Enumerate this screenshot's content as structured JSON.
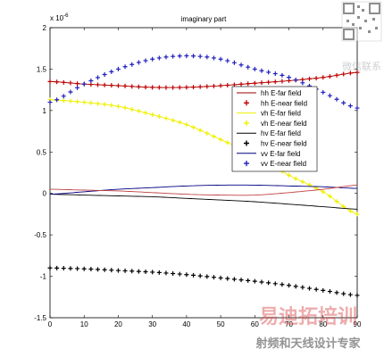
{
  "chart_data": {
    "type": "line",
    "title": "imaginary part",
    "xlabel": "",
    "ylabel": "",
    "exponent_label": "x 10",
    "exponent_power": "-6",
    "xlim": [
      0,
      90
    ],
    "ylim": [
      -1.5,
      2
    ],
    "x_ticks": [
      "0",
      "10",
      "20",
      "30",
      "40",
      "50",
      "60",
      "70",
      "80",
      "90"
    ],
    "y_ticks": [
      "-1.5",
      "-1",
      "-0.5",
      "0",
      "0.5",
      "1",
      "1.5",
      "2"
    ],
    "grid": false,
    "legend_position": "upper-right",
    "legend": [
      "hh E-far field",
      "hh E-near field",
      "vh E-far field",
      "vh E-near field",
      "hv E-far field",
      "hv E-near field",
      "vv E-far field",
      "vv E-near field"
    ],
    "series": [
      {
        "name": "hh E-far field",
        "color": "#a00000",
        "style": "line",
        "x": [
          0,
          10,
          20,
          30,
          40,
          50,
          60,
          70,
          80,
          90
        ],
        "y": [
          1.35,
          1.32,
          1.3,
          1.28,
          1.28,
          1.3,
          1.33,
          1.36,
          1.4,
          1.46
        ]
      },
      {
        "name": "hh E-near field",
        "color": "#c00000",
        "style": "plus",
        "x": [
          0,
          10,
          20,
          30,
          40,
          50,
          60,
          70,
          80,
          90
        ],
        "y": [
          1.35,
          1.32,
          1.3,
          1.28,
          1.28,
          1.3,
          1.33,
          1.36,
          1.4,
          1.46
        ]
      },
      {
        "name": "vh E-far field",
        "color": "#f0f000",
        "style": "line",
        "x": [
          0,
          10,
          20,
          30,
          40,
          50,
          60,
          70,
          80,
          90
        ],
        "y": [
          1.13,
          1.1,
          1.05,
          0.95,
          0.83,
          0.65,
          0.46,
          0.22,
          0.02,
          -0.25
        ]
      },
      {
        "name": "vh E-near field",
        "color": "#f0f000",
        "style": "plus",
        "x": [
          0,
          10,
          20,
          30,
          40,
          50,
          60,
          70,
          80,
          90
        ],
        "y": [
          1.13,
          1.1,
          1.05,
          0.95,
          0.83,
          0.65,
          0.46,
          0.22,
          0.02,
          -0.25
        ]
      },
      {
        "name": "hv E-far field",
        "color": "#000000",
        "style": "line",
        "x": [
          0,
          10,
          20,
          30,
          40,
          50,
          60,
          70,
          80,
          90
        ],
        "y": [
          -0.01,
          -0.02,
          -0.03,
          -0.04,
          -0.06,
          -0.08,
          -0.1,
          -0.13,
          -0.16,
          -0.19
        ]
      },
      {
        "name": "hv E-near field",
        "color": "#000000",
        "style": "plus",
        "x": [
          0,
          10,
          20,
          30,
          40,
          50,
          60,
          70,
          80,
          90
        ],
        "y": [
          -0.9,
          -0.91,
          -0.93,
          -0.95,
          -0.98,
          -1.02,
          -1.06,
          -1.11,
          -1.17,
          -1.23
        ]
      },
      {
        "name": "vv E-far field",
        "color": "#000080",
        "style": "line",
        "x": [
          0,
          10,
          20,
          30,
          40,
          50,
          60,
          70,
          80,
          90
        ],
        "y": [
          -0.01,
          0.02,
          0.05,
          0.07,
          0.09,
          0.1,
          0.1,
          0.09,
          0.08,
          0.06
        ]
      },
      {
        "name": "vv E-near field",
        "color": "#1f1fbf",
        "style": "plus",
        "x": [
          0,
          10,
          20,
          30,
          40,
          50,
          60,
          70,
          80,
          90
        ],
        "y": [
          1.1,
          1.32,
          1.5,
          1.62,
          1.66,
          1.62,
          1.5,
          1.4,
          1.22,
          1.03
        ]
      },
      {
        "name": "",
        "color": "#c04040",
        "style": "line",
        "x": [
          0,
          10,
          20,
          30,
          40,
          50,
          60,
          70,
          80,
          90
        ],
        "y": [
          0.05,
          0.04,
          0.03,
          0.01,
          -0.01,
          -0.02,
          -0.02,
          0.01,
          0.05,
          0.1
        ]
      }
    ]
  },
  "watermark": {
    "qr_caption": "微信联系",
    "brand": "易迪拓培训",
    "tagline": "射频和天线设计专家"
  }
}
